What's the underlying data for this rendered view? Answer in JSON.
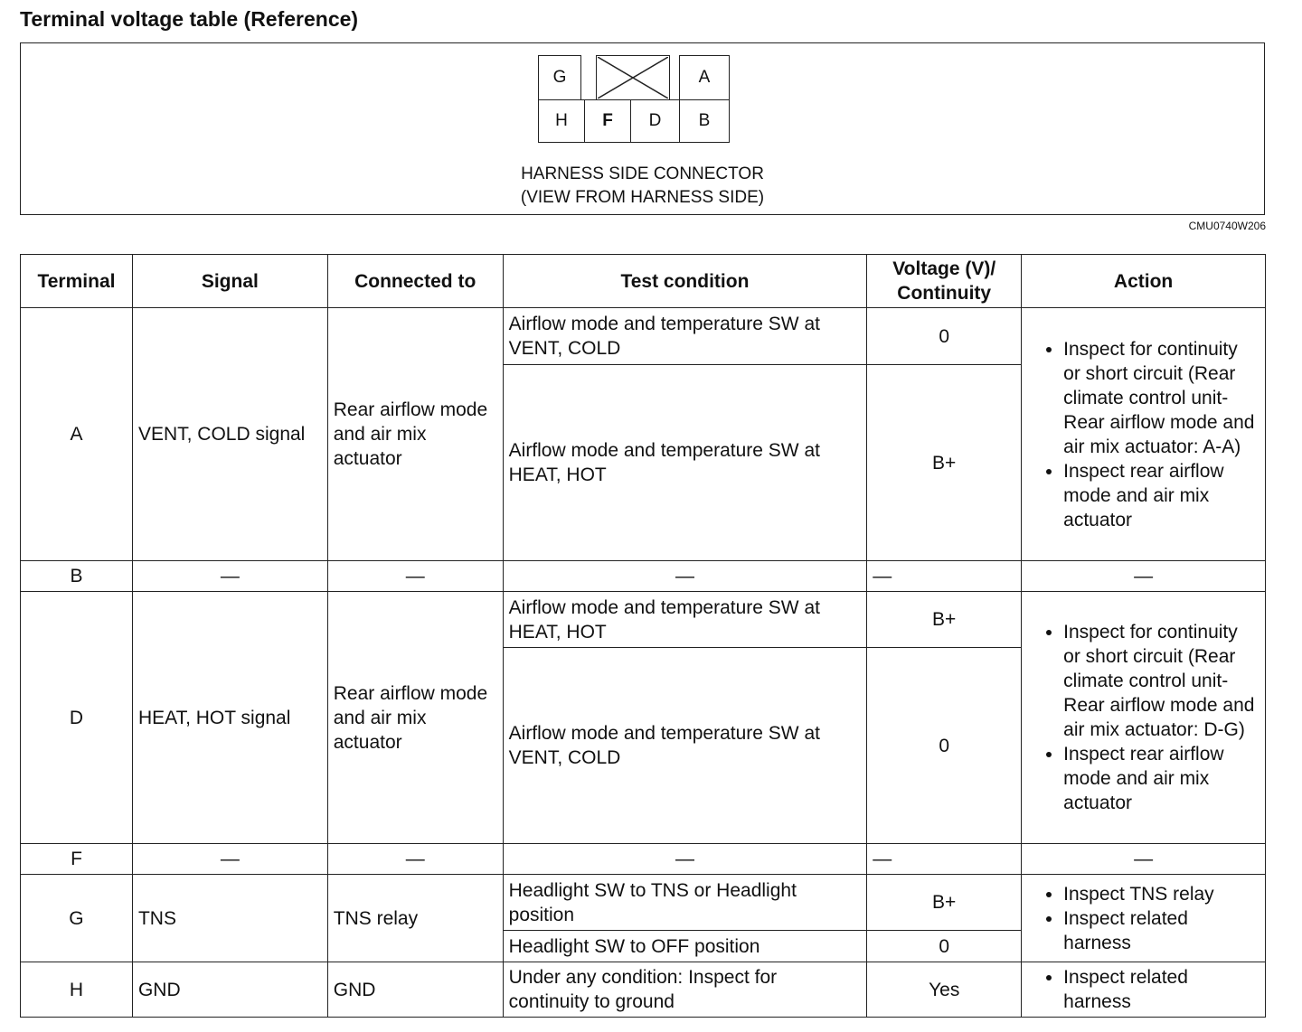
{
  "title": "Terminal voltage table (Reference)",
  "connector": {
    "pins_top": [
      "G",
      "A"
    ],
    "pins_bottom": [
      "H",
      "F",
      "D",
      "B"
    ],
    "caption_line1": "HARNESS SIDE CONNECTOR",
    "caption_line2": "(VIEW FROM HARNESS SIDE)",
    "code": "CMU0740W206"
  },
  "headers": [
    "Terminal",
    "Signal",
    "Connected to",
    "Test condition",
    "Voltage (V)/ Continuity",
    "Action"
  ],
  "rows": {
    "A": {
      "terminal": "A",
      "signal": "VENT, COLD signal",
      "connected": "Rear airflow mode and air mix actuator",
      "cond1": "Airflow mode and temperature SW at VENT, COLD",
      "v1": "0",
      "cond2": "Airflow mode and temperature SW at HEAT, HOT",
      "v2": "B+",
      "action1": "Inspect for continuity or short circuit (Rear climate control unit-Rear airflow mode and air mix actuator: A-A)",
      "action2": "Inspect rear airflow mode and air mix actuator"
    },
    "B": {
      "terminal": "B",
      "signal": "—",
      "connected": "—",
      "cond": "—",
      "v": "—",
      "action": "—"
    },
    "D": {
      "terminal": "D",
      "signal": "HEAT, HOT signal",
      "connected": "Rear airflow mode and air mix actuator",
      "cond1": "Airflow mode and temperature SW at HEAT, HOT",
      "v1": "B+",
      "cond2": "Airflow mode and temperature SW at VENT, COLD",
      "v2": "0",
      "action1": "Inspect for continuity or short circuit (Rear climate control unit-Rear airflow mode and air mix actuator: D-G)",
      "action2": "Inspect rear airflow mode and air mix actuator"
    },
    "F": {
      "terminal": "F",
      "signal": "—",
      "connected": "—",
      "cond": "—",
      "v": "—",
      "action": "—"
    },
    "G": {
      "terminal": "G",
      "signal": "TNS",
      "connected": "TNS relay",
      "cond1": "Headlight SW to TNS or Headlight position",
      "v1": "B+",
      "cond2": "Headlight SW to OFF position",
      "v2": "0",
      "action1": "Inspect TNS relay",
      "action2": "Inspect related harness"
    },
    "H": {
      "terminal": "H",
      "signal": "GND",
      "connected": "GND",
      "cond": "Under any condition: Inspect for continuity to ground",
      "v": "Yes",
      "action": "Inspect related harness"
    }
  }
}
